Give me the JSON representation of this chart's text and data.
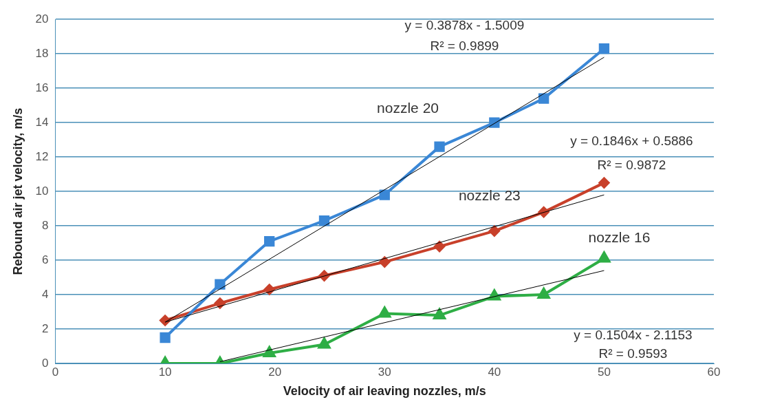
{
  "chart_data": {
    "type": "line",
    "xlabel": "Velocity of air leaving nozzles, m/s",
    "ylabel": "Rebound air jet velocity, m/s",
    "xlim": [
      0,
      60
    ],
    "xticks": [
      0,
      10,
      20,
      30,
      40,
      50,
      60
    ],
    "ylim": [
      0,
      20
    ],
    "yticks": [
      0,
      2,
      4,
      6,
      8,
      10,
      12,
      14,
      16,
      18,
      20
    ],
    "grid": "y",
    "legend": false,
    "series": [
      {
        "name": "nozzle 20",
        "color": "#3a87d6",
        "marker": "square",
        "x": [
          10,
          15,
          19.5,
          24.5,
          30,
          35,
          40,
          44.5,
          50
        ],
        "values": [
          1.5,
          4.6,
          7.1,
          8.3,
          9.8,
          12.6,
          14,
          15.4,
          18.3
        ]
      },
      {
        "name": "nozzle 23",
        "color": "#c8402a",
        "marker": "diamond",
        "x": [
          10,
          15,
          19.5,
          24.5,
          30,
          35,
          40,
          44.5,
          50
        ],
        "values": [
          2.5,
          3.5,
          4.3,
          5.1,
          5.9,
          6.8,
          7.7,
          8.8,
          10.5
        ]
      },
      {
        "name": "nozzle 16",
        "color": "#2eae45",
        "marker": "triangle",
        "x": [
          10,
          15,
          19.5,
          24.5,
          30,
          35,
          40,
          44.5,
          50
        ],
        "values": [
          0,
          0,
          0.6,
          1.1,
          2.9,
          2.8,
          3.9,
          4,
          6.1
        ]
      },
      {
        "type": "line",
        "color": "#000000",
        "marker": "none",
        "x": [
          10,
          50
        ],
        "values": [
          2.4,
          17.8
        ]
      },
      {
        "type": "line",
        "color": "#000000",
        "marker": "none",
        "x": [
          10,
          50
        ],
        "values": [
          2.4,
          9.8
        ]
      },
      {
        "type": "line",
        "color": "#000000",
        "marker": "none",
        "x": [
          15,
          50
        ],
        "values": [
          0.1,
          5.4
        ]
      }
    ],
    "annotations": [
      "y = 0.3878x - 1.5009",
      "R² = 0.9899",
      "y = 0.1846x + 0.5886",
      "R² = 0.9872",
      "y = 0.1504x - 2.1153",
      "R² = 0.9593"
    ]
  }
}
